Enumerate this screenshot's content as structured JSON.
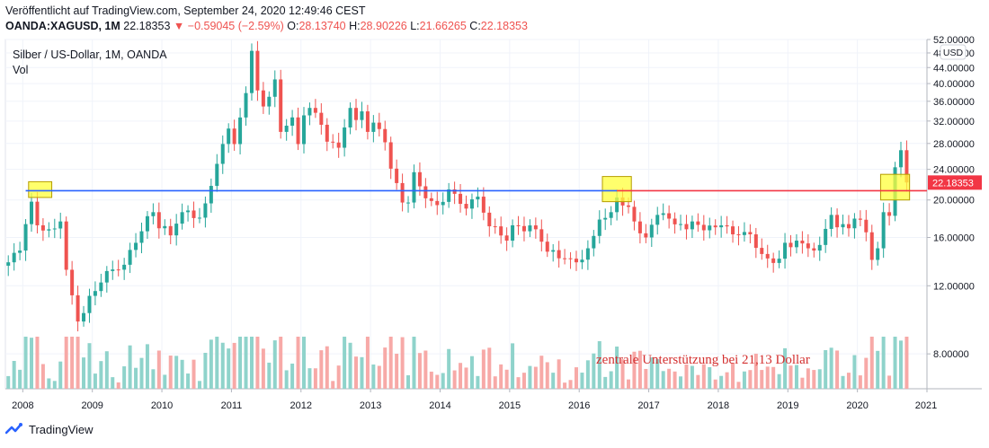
{
  "header": {
    "published": "Veröffentlicht auf TradingView.com, September 24, 2020 12:49:46 CEST",
    "symbol": "OANDA:XAGUSD, 1M",
    "last": "22.18353",
    "arrow": "▼",
    "change": "−0.59045 (−2.59%)",
    "o_label": "O:",
    "o_value": "28.13740",
    "h_label": "H:",
    "h_value": "28.90226",
    "l_label": "L:",
    "l_value": "21.66265",
    "c_label": "C:",
    "c_value": "22.18353"
  },
  "footer": {
    "brand": "TradingView"
  },
  "colors": {
    "up": "#26a69a",
    "down": "#ef5350",
    "up_vol": "#8fd3cb",
    "down_vol": "#f7a9a7",
    "support_blue": "#2962ff",
    "support_red": "#f23645",
    "highlight": "#ffff3b",
    "annotation": "#d32f2f"
  },
  "chart_data": {
    "type": "candlestick",
    "title": "Silber / US-Dollar, 1M, OANDA",
    "volume_label": "Vol",
    "currency": "USD",
    "price_scale": "log",
    "ylim": [
      6.5,
      52
    ],
    "y_ticks": [
      8,
      12,
      16,
      20,
      24,
      28,
      32,
      36,
      40,
      44,
      48,
      52
    ],
    "y_tick_labels": [
      "8.00000",
      "12.00000",
      "16.00000",
      "20.00000",
      "24.00000",
      "28.00000",
      "32.00000",
      "36.00000",
      "40.00000",
      "44.00000",
      "48.00000",
      "52.00000"
    ],
    "x_range": [
      "2007-10",
      "2020-12"
    ],
    "x_ticks": [
      "2008",
      "2009",
      "2010",
      "2011",
      "2012",
      "2013",
      "2014",
      "2015",
      "2016",
      "2017",
      "2018",
      "2019",
      "2020",
      "2021"
    ],
    "last_price_label": "22.18353",
    "annotation": "zentrale Unterstützung bei 21,13 Dollar",
    "support_level": 21.13,
    "support_segments": [
      {
        "from": "2008-01",
        "to": "2016-07",
        "color": "blue"
      },
      {
        "from": "2016-07",
        "to": "2020-11",
        "color": "red"
      }
    ],
    "highlight_boxes": [
      {
        "from": "2008-02",
        "to": "2008-05",
        "low": 20.3,
        "high": 22.3
      },
      {
        "from": "2016-05",
        "to": "2016-09",
        "low": 19.8,
        "high": 23.0
      },
      {
        "from": "2020-05",
        "to": "2020-09",
        "low": 20.0,
        "high": 23.3
      }
    ],
    "anchor_closes": [
      [
        "2007-10",
        13.8
      ],
      [
        "2007-12",
        14.8
      ],
      [
        "2008-02",
        19.8
      ],
      [
        "2008-03",
        17.2
      ],
      [
        "2008-05",
        16.8
      ],
      [
        "2008-07",
        17.6
      ],
      [
        "2008-08",
        13.2
      ],
      [
        "2008-10",
        9.7
      ],
      [
        "2008-11",
        10.2
      ],
      [
        "2008-12",
        11.3
      ],
      [
        "2009-03",
        13.1
      ],
      [
        "2009-06",
        13.6
      ],
      [
        "2009-09",
        16.6
      ],
      [
        "2009-11",
        18.6
      ],
      [
        "2009-12",
        16.9
      ],
      [
        "2010-02",
        16.2
      ],
      [
        "2010-04",
        18.6
      ],
      [
        "2010-07",
        18.0
      ],
      [
        "2010-08",
        19.6
      ],
      [
        "2010-10",
        24.8
      ],
      [
        "2010-12",
        30.6
      ],
      [
        "2011-01",
        27.9
      ],
      [
        "2011-03",
        37.8
      ],
      [
        "2011-04",
        48.6
      ],
      [
        "2011-05",
        38.4
      ],
      [
        "2011-06",
        34.9
      ],
      [
        "2011-08",
        41.0
      ],
      [
        "2011-09",
        30.0
      ],
      [
        "2011-11",
        32.7
      ],
      [
        "2011-12",
        27.9
      ],
      [
        "2012-01",
        33.1
      ],
      [
        "2012-02",
        34.6
      ],
      [
        "2012-04",
        31.3
      ],
      [
        "2012-05",
        28.3
      ],
      [
        "2012-07",
        27.3
      ],
      [
        "2012-08",
        30.8
      ],
      [
        "2012-09",
        34.6
      ],
      [
        "2012-10",
        32.2
      ],
      [
        "2012-11",
        33.9
      ],
      [
        "2012-12",
        30.0
      ],
      [
        "2013-01",
        31.7
      ],
      [
        "2013-03",
        28.2
      ],
      [
        "2013-04",
        24.1
      ],
      [
        "2013-06",
        19.7
      ],
      [
        "2013-07",
        19.7
      ],
      [
        "2013-08",
        23.6
      ],
      [
        "2013-09",
        21.7
      ],
      [
        "2013-12",
        19.4
      ],
      [
        "2014-02",
        21.3
      ],
      [
        "2014-05",
        19.0
      ],
      [
        "2014-07",
        20.4
      ],
      [
        "2014-09",
        17.1
      ],
      [
        "2014-12",
        15.7
      ],
      [
        "2015-01",
        17.2
      ],
      [
        "2015-03",
        16.6
      ],
      [
        "2015-05",
        16.8
      ],
      [
        "2015-07",
        14.7
      ],
      [
        "2015-11",
        14.1
      ],
      [
        "2015-12",
        13.8
      ],
      [
        "2016-02",
        15.0
      ],
      [
        "2016-04",
        17.8
      ],
      [
        "2016-06",
        18.6
      ],
      [
        "2016-07",
        20.3
      ],
      [
        "2016-09",
        19.2
      ],
      [
        "2016-10",
        17.6
      ],
      [
        "2016-11",
        16.4
      ],
      [
        "2016-12",
        16.0
      ],
      [
        "2017-02",
        18.3
      ],
      [
        "2017-04",
        17.9
      ],
      [
        "2017-05",
        17.3
      ],
      [
        "2017-07",
        16.8
      ],
      [
        "2017-08",
        17.6
      ],
      [
        "2017-10",
        16.7
      ],
      [
        "2017-12",
        17.0
      ],
      [
        "2018-01",
        17.2
      ],
      [
        "2018-03",
        16.3
      ],
      [
        "2018-06",
        16.3
      ],
      [
        "2018-08",
        14.5
      ],
      [
        "2018-11",
        14.1
      ],
      [
        "2018-12",
        15.5
      ],
      [
        "2019-02",
        15.7
      ],
      [
        "2019-04",
        15.0
      ],
      [
        "2019-05",
        14.8
      ],
      [
        "2019-06",
        15.3
      ],
      [
        "2019-08",
        18.3
      ],
      [
        "2019-09",
        17.0
      ],
      [
        "2019-11",
        16.9
      ],
      [
        "2019-12",
        17.9
      ],
      [
        "2020-02",
        16.5
      ],
      [
        "2020-03",
        14.0
      ],
      [
        "2020-04",
        15.0
      ],
      [
        "2020-05",
        18.6
      ],
      [
        "2020-06",
        18.2
      ],
      [
        "2020-07",
        24.3
      ],
      [
        "2020-08",
        26.9
      ],
      [
        "2020-09",
        22.2
      ]
    ]
  }
}
